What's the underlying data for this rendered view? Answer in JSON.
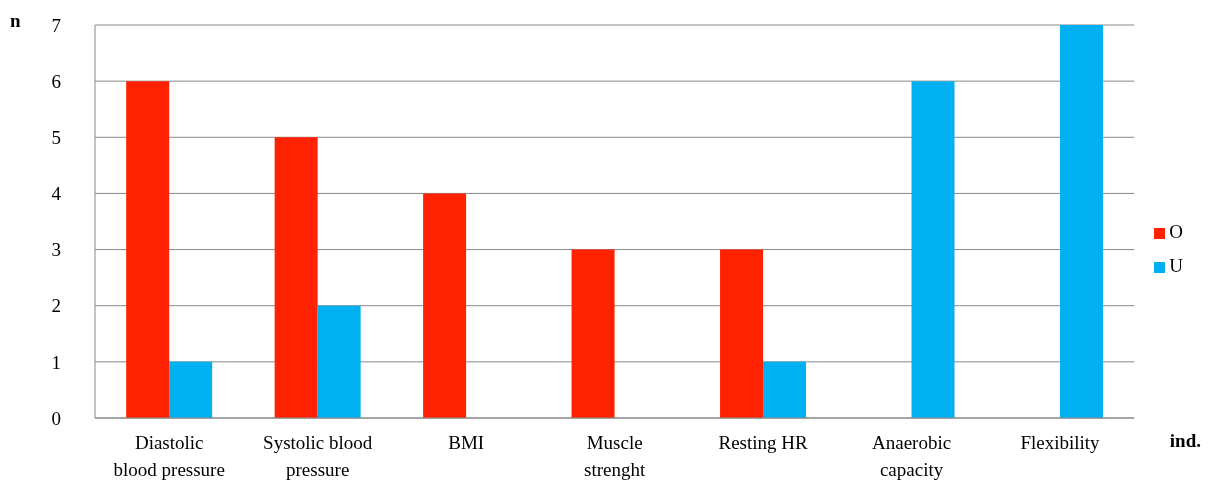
{
  "chart_data": {
    "type": "bar",
    "xlabel": "ind.",
    "ylabel": "n",
    "categories": [
      "Diastolic blood pressure",
      "Systolic blood pressure",
      "BMI",
      "Muscle strenght",
      "Resting HR",
      "Anaerobic capacity",
      "Flexibility"
    ],
    "series": [
      {
        "name": "O",
        "color": "#ff2200",
        "values": [
          6,
          5,
          4,
          3,
          3,
          0,
          0
        ]
      },
      {
        "name": "U",
        "color": "#00b0f0",
        "values": [
          1,
          2,
          0,
          0,
          1,
          6,
          7
        ]
      }
    ],
    "ylim": [
      0,
      7
    ],
    "yticks": [
      0,
      1,
      2,
      3,
      4,
      5,
      6,
      7
    ],
    "grid": "y",
    "legend": "right"
  }
}
